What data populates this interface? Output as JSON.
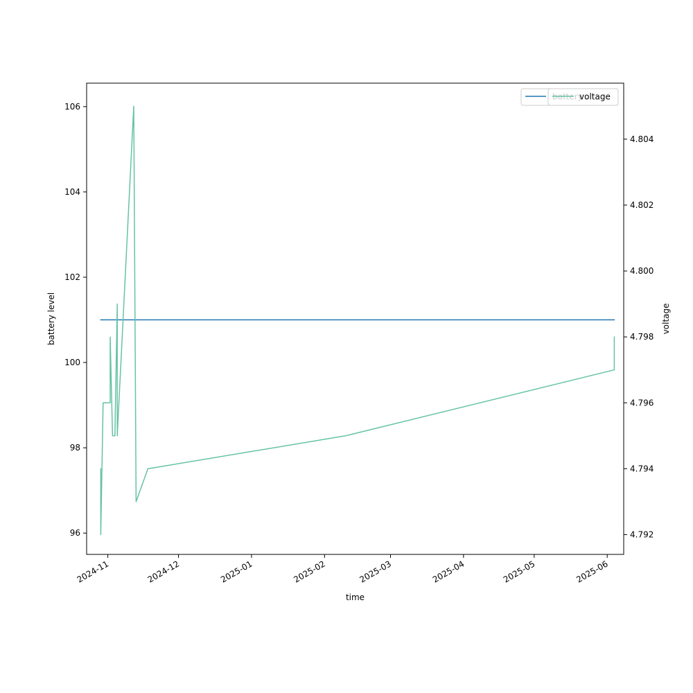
{
  "chart_data": {
    "type": "line",
    "title": "",
    "xlabel": "time",
    "ylabel_left": "battery level",
    "ylabel_right": "voltage",
    "xlim": [
      "2024-10-23",
      "2025-06-08"
    ],
    "ylim_left": [
      95.5,
      106.55
    ],
    "ylim_right": [
      4.7914,
      4.8057
    ],
    "x_ticks": [
      "2024-11",
      "2024-12",
      "2025-01",
      "2025-02",
      "2025-03",
      "2025-04",
      "2025-05",
      "2025-06"
    ],
    "y_ticks_left": [
      96,
      98,
      100,
      102,
      104,
      106
    ],
    "y_ticks_right": [
      "4.792",
      "4.794",
      "4.796",
      "4.798",
      "4.800",
      "4.802",
      "4.804"
    ],
    "grid": false,
    "series": [
      {
        "name": "battery",
        "axis": "left",
        "color": "#1f77b4",
        "points": [
          {
            "x": "2024-10-29",
            "y": 101
          },
          {
            "x": "2025-06-04",
            "y": 101
          }
        ]
      },
      {
        "name": "voltage",
        "axis": "right",
        "color": "#66c2a5",
        "points": [
          {
            "x": "2024-10-29",
            "y": 4.794
          },
          {
            "x": "2024-10-29",
            "y": 4.792
          },
          {
            "x": "2024-10-30",
            "y": 4.796
          },
          {
            "x": "2024-11-02",
            "y": 4.796
          },
          {
            "x": "2024-11-02",
            "y": 4.798
          },
          {
            "x": "2024-11-03",
            "y": 4.795
          },
          {
            "x": "2024-11-04",
            "y": 4.795
          },
          {
            "x": "2024-11-05",
            "y": 4.799
          },
          {
            "x": "2024-11-05",
            "y": 4.795
          },
          {
            "x": "2024-11-12",
            "y": 4.805
          },
          {
            "x": "2024-11-13",
            "y": 4.793
          },
          {
            "x": "2024-11-18",
            "y": 4.794
          },
          {
            "x": "2025-02-10",
            "y": 4.795
          },
          {
            "x": "2025-06-04",
            "y": 4.797
          },
          {
            "x": "2025-06-04",
            "y": 4.798
          }
        ]
      }
    ],
    "legends": [
      {
        "placement": "upper-right",
        "entries": [
          "battery"
        ]
      },
      {
        "placement": "upper-right",
        "entries": [
          "voltage"
        ]
      }
    ]
  }
}
